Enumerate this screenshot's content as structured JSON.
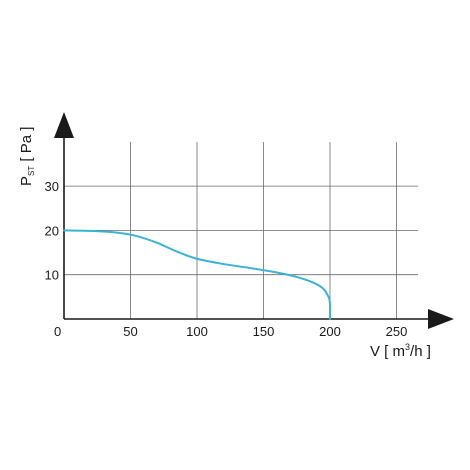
{
  "chart_data": {
    "type": "line",
    "title": "",
    "xlabel": {
      "prefix": "V [ m",
      "sup": "3",
      "suffix": "/h ]"
    },
    "ylabel": {
      "prefix": "P",
      "sub": "ST",
      "suffix": " [ Pa ]"
    },
    "xlim": [
      0,
      275
    ],
    "ylim": [
      0,
      40
    ],
    "x_ticks": [
      {
        "value": 0,
        "label": "0"
      },
      {
        "value": 50,
        "label": "50"
      },
      {
        "value": 100,
        "label": "100"
      },
      {
        "value": 150,
        "label": "150"
      },
      {
        "value": 200,
        "label": "200"
      },
      {
        "value": 250,
        "label": "250"
      }
    ],
    "y_ticks": [
      {
        "value": 10,
        "label": "10"
      },
      {
        "value": 20,
        "label": "20"
      },
      {
        "value": 30,
        "label": "30"
      }
    ],
    "grid": true,
    "series": [
      {
        "color": "#3ab4d2",
        "x": [
          0,
          20,
          40,
          55,
          70,
          85,
          100,
          120,
          140,
          160,
          175,
          185,
          192,
          196,
          198,
          199.5,
          200,
          200
        ],
        "y": [
          20,
          19.9,
          19.5,
          18.7,
          17.2,
          15.2,
          13.6,
          12.4,
          11.5,
          10.5,
          9.5,
          8.5,
          7.5,
          6.5,
          5.5,
          4.5,
          3.0,
          0
        ]
      }
    ]
  }
}
